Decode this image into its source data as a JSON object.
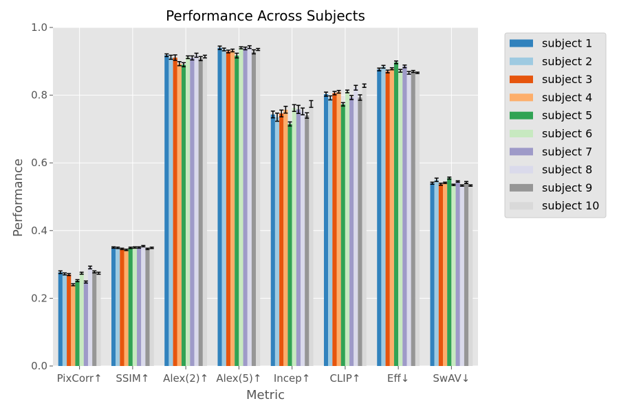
{
  "chart_data": {
    "type": "bar",
    "title": "Performance Across Subjects",
    "xlabel": "Metric",
    "ylabel": "Performance",
    "ylim": [
      0,
      1.0
    ],
    "yticks": [
      "0.0",
      "0.2",
      "0.4",
      "0.6",
      "0.8",
      "1.0"
    ],
    "grid": true,
    "legend_position": "outside-right",
    "categories": [
      "PixCorr↑",
      "SSIM↑",
      "Alex(2)↑",
      "Alex(5)↑",
      "Incep↑",
      "CLIP↑",
      "Eff↓",
      "SwAV↓"
    ],
    "series": [
      {
        "name": "subject 1",
        "color": "#3182bd",
        "values": [
          0.277,
          0.35,
          0.918,
          0.94,
          0.743,
          0.803,
          0.876,
          0.54
        ],
        "errors": [
          0.004,
          0.002,
          0.004,
          0.005,
          0.01,
          0.006,
          0.004,
          0.003
        ]
      },
      {
        "name": "subject 2",
        "color": "#9ecae1",
        "values": [
          0.272,
          0.349,
          0.912,
          0.935,
          0.735,
          0.792,
          0.884,
          0.55
        ],
        "errors": [
          0.003,
          0.002,
          0.006,
          0.004,
          0.012,
          0.006,
          0.004,
          0.005
        ]
      },
      {
        "name": "subject 3",
        "color": "#e6550d",
        "values": [
          0.27,
          0.346,
          0.911,
          0.929,
          0.746,
          0.806,
          0.87,
          0.537
        ],
        "errors": [
          0.003,
          0.002,
          0.008,
          0.004,
          0.01,
          0.005,
          0.004,
          0.003
        ]
      },
      {
        "name": "subject 4",
        "color": "#fdae6b",
        "values": [
          0.24,
          0.343,
          0.893,
          0.932,
          0.757,
          0.81,
          0.878,
          0.541
        ],
        "errors": [
          0.003,
          0.002,
          0.006,
          0.004,
          0.01,
          0.004,
          0.003,
          0.002
        ]
      },
      {
        "name": "subject 5",
        "color": "#31a354",
        "values": [
          0.252,
          0.349,
          0.89,
          0.917,
          0.715,
          0.773,
          0.897,
          0.555
        ],
        "errors": [
          0.003,
          0.002,
          0.006,
          0.007,
          0.006,
          0.005,
          0.004,
          0.003
        ]
      },
      {
        "name": "subject 6",
        "color": "#c7e9c0",
        "values": [
          0.274,
          0.35,
          0.912,
          0.94,
          0.762,
          0.811,
          0.872,
          0.535
        ],
        "errors": [
          0.003,
          0.002,
          0.004,
          0.003,
          0.01,
          0.004,
          0.004,
          0.002
        ]
      },
      {
        "name": "subject 7",
        "color": "#9e9ac8",
        "values": [
          0.248,
          0.35,
          0.91,
          0.938,
          0.758,
          0.793,
          0.885,
          0.545
        ],
        "errors": [
          0.003,
          0.002,
          0.006,
          0.004,
          0.012,
          0.006,
          0.004,
          0.002
        ]
      },
      {
        "name": "subject 8",
        "color": "#dadaeb",
        "values": [
          0.291,
          0.354,
          0.918,
          0.942,
          0.752,
          0.822,
          0.866,
          0.533
        ],
        "errors": [
          0.004,
          0.002,
          0.006,
          0.004,
          0.01,
          0.007,
          0.004,
          0.002
        ]
      },
      {
        "name": "subject 9",
        "color": "#969696",
        "values": [
          0.278,
          0.346,
          0.908,
          0.928,
          0.74,
          0.793,
          0.87,
          0.542
        ],
        "errors": [
          0.003,
          0.002,
          0.006,
          0.006,
          0.008,
          0.008,
          0.003,
          0.003
        ]
      },
      {
        "name": "subject 10",
        "color": "#d9d9d9",
        "values": [
          0.274,
          0.349,
          0.914,
          0.935,
          0.774,
          0.828,
          0.866,
          0.533
        ],
        "errors": [
          0.003,
          0.002,
          0.004,
          0.003,
          0.01,
          0.005,
          0.002,
          0.002
        ]
      }
    ]
  }
}
